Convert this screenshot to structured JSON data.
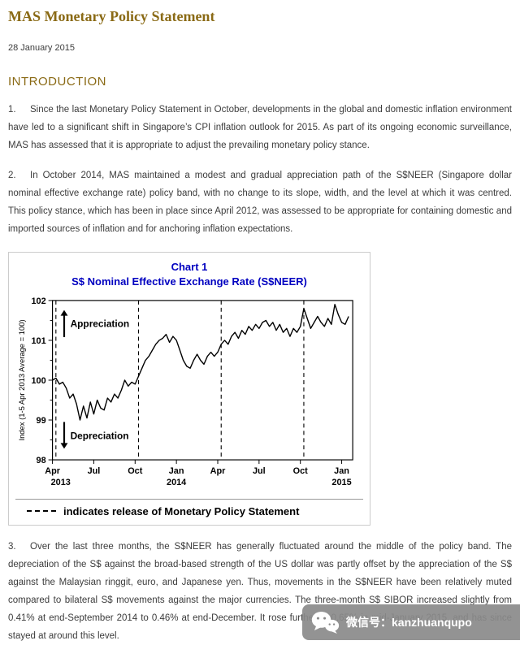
{
  "doc": {
    "title": "MAS Monetary Policy Statement",
    "date": "28 January 2015",
    "section_heading": "INTRODUCTION",
    "paragraphs": [
      {
        "num": "1.",
        "text": "Since the last Monetary Policy Statement in October, developments in the global and domestic inflation environment have led to a significant shift in Singapore’s CPI inflation outlook for 2015. As part of its ongoing economic surveillance, MAS has assessed that it is appropriate to adjust the prevailing monetary policy stance."
      },
      {
        "num": "2.",
        "text": "In October 2014, MAS maintained a modest and gradual appreciation path of the S$NEER (Singapore dollar nominal effective exchange rate) policy band, with no change to its slope, width, and the level at which it was centred. This policy stance, which has been in place since April 2012, was assessed to be appropriate for containing domestic and imported sources of inflation and for anchoring inflation expectations."
      },
      {
        "num": "3.",
        "text": "Over the last three months, the S$NEER has generally fluctuated around the middle of the policy band. The depreciation of the S$ against the broad-based strength of the US dollar was partly offset by the appreciation of the S$ against the Malaysian ringgit, euro, and Japanese yen. Thus, movements in the S$NEER have been relatively muted compared to bilateral S$ movements against the major currencies. The three-month S$ SIBOR increased slightly from 0.41% at end-September 2014 to 0.46% at end-December. It rose further to 0.65% in mid-January 2015, and has since stayed at around this level."
      }
    ]
  },
  "chart_data": {
    "type": "line",
    "title": "Chart 1",
    "subtitle": "S$ Nominal Effective Exchange Rate (S$NEER)",
    "ylabel": "Index (1-5 Apr 2013 Average = 100)",
    "legend_text": "indicates release of Monetary Policy Statement",
    "ylim": [
      98,
      102
    ],
    "yticks": [
      98,
      99,
      100,
      101,
      102
    ],
    "y_minor_ticks": [
      98.5,
      99.5,
      100.5,
      101.5
    ],
    "xlim": [
      0,
      21.8
    ],
    "x_unit": "months since Apr 2013",
    "xticks": [
      {
        "pos": 0,
        "label": "Apr"
      },
      {
        "pos": 3,
        "label": "Jul"
      },
      {
        "pos": 6,
        "label": "Oct"
      },
      {
        "pos": 9,
        "label": "Jan"
      },
      {
        "pos": 12,
        "label": "Apr"
      },
      {
        "pos": 15,
        "label": "Jul"
      },
      {
        "pos": 18,
        "label": "Oct"
      },
      {
        "pos": 21,
        "label": "Jan"
      }
    ],
    "year_labels": [
      {
        "pos": 0.6,
        "label": "2013"
      },
      {
        "pos": 9,
        "label": "2014"
      },
      {
        "pos": 21,
        "label": "2015"
      }
    ],
    "mps_release_vlines": [
      0.25,
      6.25,
      12.25,
      18.25
    ],
    "annotations": {
      "up": {
        "label": "Appreciation",
        "x": 0.85,
        "y_tail": 101.08,
        "y_head": 101.76,
        "label_x": 1.3,
        "label_y": 101.42
      },
      "down": {
        "label": "Depreciation",
        "x": 0.85,
        "y_tail": 98.95,
        "y_head": 98.28,
        "label_x": 1.3,
        "label_y": 98.6
      }
    },
    "grid": false,
    "line_color": "#000000",
    "series": [
      {
        "name": "S$NEER",
        "x_start": 0,
        "x_step": 0.25,
        "values": [
          100.0,
          100.05,
          99.9,
          99.95,
          99.8,
          99.55,
          99.65,
          99.4,
          99.0,
          99.35,
          99.05,
          99.45,
          99.15,
          99.5,
          99.3,
          99.25,
          99.55,
          99.45,
          99.65,
          99.55,
          99.75,
          100.0,
          99.85,
          99.95,
          99.9,
          100.1,
          100.3,
          100.5,
          100.6,
          100.75,
          100.9,
          101.0,
          101.05,
          101.15,
          100.95,
          101.1,
          101.0,
          100.75,
          100.5,
          100.35,
          100.3,
          100.5,
          100.65,
          100.5,
          100.4,
          100.6,
          100.7,
          100.6,
          100.7,
          100.9,
          101.0,
          100.9,
          101.1,
          101.2,
          101.05,
          101.25,
          101.15,
          101.35,
          101.25,
          101.4,
          101.3,
          101.45,
          101.5,
          101.35,
          101.45,
          101.25,
          101.4,
          101.2,
          101.3,
          101.1,
          101.3,
          101.2,
          101.35,
          101.8,
          101.55,
          101.3,
          101.45,
          101.6,
          101.45,
          101.35,
          101.55,
          101.4,
          101.9,
          101.65,
          101.45,
          101.4,
          101.6
        ]
      }
    ]
  },
  "watermark": {
    "text": "微信号：kanzhuanqupo"
  },
  "colors": {
    "heading_gold": "#8a6a15",
    "chart_title_blue": "#0000c0",
    "body_text": "#3c3c3c",
    "watermark_grey": "#8a8a8a"
  }
}
